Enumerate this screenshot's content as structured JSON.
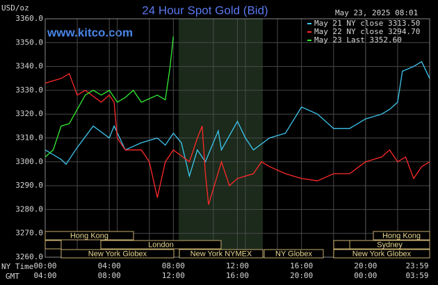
{
  "chart_data": {
    "type": "line",
    "title": "24 Hour Spot Gold (Bid)",
    "unit": "USD/oz",
    "timestamp": "May 23, 2025 08:01",
    "site": "www.kitco.com",
    "x_row_labels": [
      "NY Time",
      "GMT"
    ],
    "xlim": [
      0,
      24
    ],
    "xticks": [
      {
        "value": 0,
        "label": "00:00"
      },
      {
        "value": 4,
        "label": "04:00"
      },
      {
        "value": 8,
        "label": "08:00"
      },
      {
        "value": 12,
        "label": "12:00"
      },
      {
        "value": 16,
        "label": "16:00"
      },
      {
        "value": 20,
        "label": "20:00"
      },
      {
        "value": 24,
        "label": "23:59"
      }
    ],
    "x2ticks": [
      {
        "value": 0,
        "label": "04:00"
      },
      {
        "value": 4,
        "label": "08:00"
      },
      {
        "value": 8,
        "label": "12:00"
      },
      {
        "value": 12,
        "label": "16:00"
      },
      {
        "value": 16,
        "label": "20:00"
      },
      {
        "value": 20,
        "label": "00:00"
      },
      {
        "value": 24,
        "label": "03:59"
      }
    ],
    "ylim": [
      3260,
      3360
    ],
    "yticks": [
      {
        "value": 3260,
        "label": "3260.0"
      },
      {
        "value": 3270,
        "label": "3270.0"
      },
      {
        "value": 3280,
        "label": "3280.0"
      },
      {
        "value": 3290,
        "label": "3290.0"
      },
      {
        "value": 3300,
        "label": "3300.0"
      },
      {
        "value": 3310,
        "label": "3310.0"
      },
      {
        "value": 3320,
        "label": "3320.0"
      },
      {
        "value": 3330,
        "label": "3330.0"
      },
      {
        "value": 3340,
        "label": "3340.0"
      },
      {
        "value": 3350,
        "label": "3350.0"
      },
      {
        "value": 3360,
        "label": "3360.0"
      }
    ],
    "grid": true,
    "series": [
      {
        "name": "May 21 NY close 3313.50",
        "color": "#3ec8f0",
        "x": [
          0,
          0.5,
          1,
          1.3,
          2,
          3,
          4,
          4.3,
          5,
          6,
          7,
          7.5,
          8,
          8.5,
          9,
          9.5,
          10,
          10.8,
          11,
          12,
          12.5,
          13,
          14,
          15,
          16,
          17,
          18,
          19,
          20,
          21,
          21.5,
          22,
          22.3,
          23,
          23.5,
          24
        ],
        "values": [
          3305,
          3303,
          3301,
          3299,
          3306,
          3315,
          3310,
          3315,
          3305,
          3308,
          3310,
          3307,
          3312,
          3308,
          3294,
          3305,
          3300,
          3313,
          3305,
          3317,
          3310,
          3305,
          3310,
          3312,
          3323,
          3320,
          3314,
          3314,
          3318,
          3320,
          3322,
          3325,
          3338,
          3340,
          3342,
          3335
        ]
      },
      {
        "name": "May 22 NY close 3294.70",
        "color": "#ff2a2a",
        "x": [
          0,
          1,
          1.5,
          2,
          2.5,
          3.5,
          4,
          4.3,
          4.5,
          5,
          6,
          6.5,
          7,
          7.5,
          8,
          9,
          9.5,
          9.8,
          10,
          10.2,
          11,
          11.5,
          12,
          13,
          13.5,
          14,
          15,
          16,
          17,
          18,
          19,
          20,
          21,
          21.5,
          22,
          22.5,
          23,
          23.5,
          24
        ],
        "values": [
          3333,
          3335,
          3337,
          3328,
          3330,
          3325,
          3328,
          3325,
          3310,
          3305,
          3305,
          3300,
          3285,
          3300,
          3305,
          3300,
          3310,
          3315,
          3295,
          3282,
          3300,
          3290,
          3293,
          3295,
          3300,
          3298,
          3295,
          3293,
          3292,
          3295,
          3295,
          3300,
          3302,
          3305,
          3300,
          3302,
          3293,
          3298,
          3300
        ]
      },
      {
        "name": "May 23 Last 3352.60",
        "color": "#33ee33",
        "x": [
          0,
          0.5,
          1,
          1.5,
          2,
          2.5,
          3,
          3.5,
          4,
          4.5,
          5,
          5.5,
          6,
          7,
          7.5,
          7.8,
          8
        ],
        "values": [
          3302,
          3305,
          3315,
          3316,
          3322,
          3328,
          3330,
          3328,
          3330,
          3325,
          3327,
          3330,
          3325,
          3328,
          3326,
          3340,
          3352.6
        ]
      }
    ],
    "sessions": [
      "Hong Kong",
      "Hong Kong",
      "London",
      "Sydney",
      "New York Globex",
      "New York NYMEX",
      "NY Globex",
      "New York Globex"
    ]
  }
}
